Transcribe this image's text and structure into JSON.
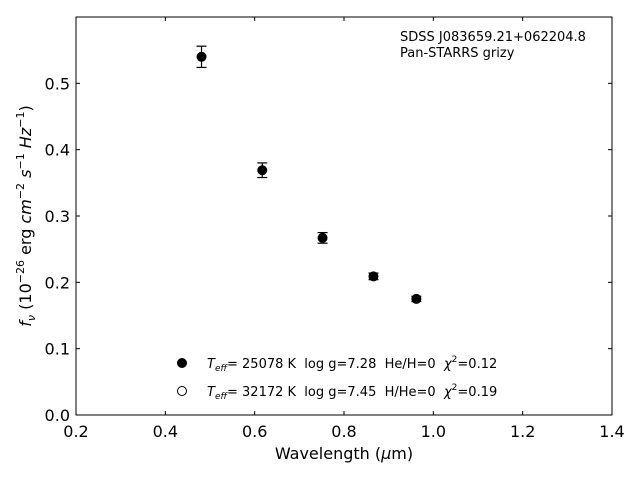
{
  "chart_data": {
    "type": "scatter",
    "title": "",
    "xlabel_base": "Wavelength (",
    "xlabel_sym": "μ",
    "xlabel_tail": "m)",
    "ylabel_f": "f",
    "ylabel_sub": "ν",
    "ylabel_open": " (10",
    "ylabel_exp1": "−26",
    "ylabel_mid1": " erg ",
    "ylabel_cm": "cm",
    "ylabel_exp2": "−2",
    "ylabel_s": "s",
    "ylabel_exp3": "−1",
    "ylabel_hz": "Hz",
    "ylabel_exp4": "−1",
    "ylabel_close": ")",
    "xlim": [
      0.2,
      1.4
    ],
    "ylim": [
      0.0,
      0.6
    ],
    "xticks": [
      0.2,
      0.4,
      0.6,
      0.8,
      1.0,
      1.2,
      1.4
    ],
    "xtick_labels": [
      "0.2",
      "0.4",
      "0.6",
      "0.8",
      "1.0",
      "1.2",
      "1.4"
    ],
    "yticks": [
      0.0,
      0.1,
      0.2,
      0.3,
      0.4,
      0.5
    ],
    "ytick_labels": [
      "0.0",
      "0.1",
      "0.2",
      "0.3",
      "0.4",
      "0.5"
    ],
    "grid": false,
    "annotation_line1": "SDSS J083659.21+062204.8",
    "annotation_line2": "Pan-STARRS grizy",
    "series": [
      {
        "marker": "filled",
        "x": [
          0.481,
          0.617,
          0.752,
          0.866,
          0.962
        ],
        "y": [
          0.54,
          0.369,
          0.267,
          0.209,
          0.175
        ],
        "yerr": [
          0.016,
          0.011,
          0.008,
          0.005,
          0.004
        ]
      }
    ],
    "legend": [
      {
        "marker": "filled",
        "teff_sym": "T",
        "teff_sub": "eff",
        "teff_val": "= 25078 K  log g=7.28  He/H=0  ",
        "chi_sym": "χ",
        "chi_exp": "2",
        "chi_val": "=0.12"
      },
      {
        "marker": "open",
        "teff_sym": "T",
        "teff_sub": "eff",
        "teff_val": "= 32172 K  log g=7.45  H/He=0  ",
        "chi_sym": "χ",
        "chi_exp": "2",
        "chi_val": "=0.19"
      }
    ],
    "legend_location": "lower center"
  }
}
